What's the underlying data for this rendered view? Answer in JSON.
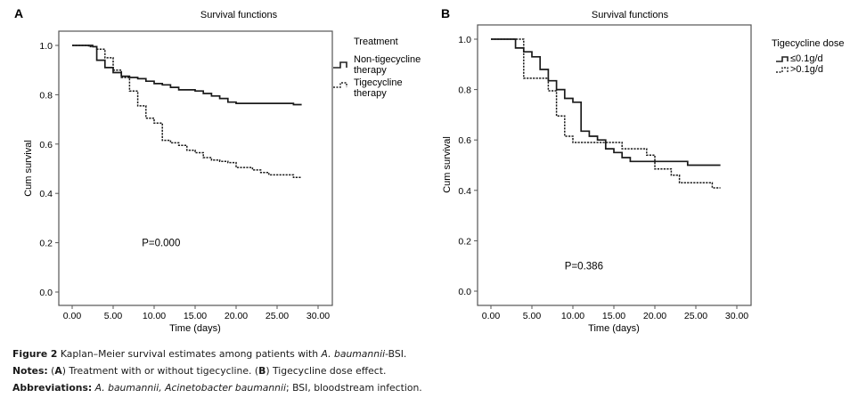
{
  "chart_data": [
    {
      "panel": "A",
      "type": "line",
      "subtype": "kaplan-meier-step",
      "title": "Survival functions",
      "xlabel": "Time (days)",
      "ylabel": "Cum survival",
      "xlim": [
        -1.5,
        31.5
      ],
      "ylim": [
        -0.05,
        1.05
      ],
      "xticks": [
        "0.00",
        "5.00",
        "10.00",
        "15.00",
        "20.00",
        "25.00",
        "30.00"
      ],
      "xtick_values": [
        0,
        5,
        10,
        15,
        20,
        25,
        30
      ],
      "yticks": [
        "0.0",
        "0.2",
        "0.4",
        "0.6",
        "0.8",
        "1.0"
      ],
      "ytick_values": [
        0,
        0.2,
        0.4,
        0.6,
        0.8,
        1.0
      ],
      "grid": false,
      "legend_title": "Treatment",
      "legend_placement": "right",
      "annotation": "P=0.000",
      "annotation_pos": [
        8.5,
        0.2
      ],
      "series": [
        {
          "name": "Non-tigecycline therapy",
          "style": "solid",
          "steps": [
            [
              0,
              1.0
            ],
            [
              2.5,
              0.995
            ],
            [
              3.0,
              0.94
            ],
            [
              4.0,
              0.91
            ],
            [
              5.0,
              0.89
            ],
            [
              6.0,
              0.875
            ],
            [
              7.0,
              0.87
            ],
            [
              8.0,
              0.865
            ],
            [
              9.0,
              0.855
            ],
            [
              10.0,
              0.845
            ],
            [
              11.0,
              0.84
            ],
            [
              12.0,
              0.83
            ],
            [
              13.0,
              0.82
            ],
            [
              15.0,
              0.815
            ],
            [
              16.0,
              0.805
            ],
            [
              17.0,
              0.795
            ],
            [
              18.0,
              0.785
            ],
            [
              19.0,
              0.77
            ],
            [
              20.0,
              0.765
            ],
            [
              27.0,
              0.76
            ]
          ],
          "end": 28
        },
        {
          "name": "Tigecycline therapy",
          "style": "dashed",
          "steps": [
            [
              0,
              1.0
            ],
            [
              2.0,
              0.995
            ],
            [
              3.0,
              0.985
            ],
            [
              4.0,
              0.95
            ],
            [
              5.0,
              0.9
            ],
            [
              6.0,
              0.87
            ],
            [
              7.0,
              0.815
            ],
            [
              8.0,
              0.755
            ],
            [
              9.0,
              0.705
            ],
            [
              10.0,
              0.685
            ],
            [
              11.0,
              0.615
            ],
            [
              12.0,
              0.605
            ],
            [
              13.0,
              0.595
            ],
            [
              14.0,
              0.575
            ],
            [
              15.0,
              0.565
            ],
            [
              16.0,
              0.545
            ],
            [
              17.0,
              0.535
            ],
            [
              18.0,
              0.53
            ],
            [
              19.0,
              0.525
            ],
            [
              20.0,
              0.505
            ],
            [
              22.0,
              0.495
            ],
            [
              23.0,
              0.485
            ],
            [
              24.0,
              0.475
            ],
            [
              27.0,
              0.465
            ]
          ],
          "end": 28
        }
      ]
    },
    {
      "panel": "B",
      "type": "line",
      "subtype": "kaplan-meier-step",
      "title": "Survival functions",
      "xlabel": "Time (days)",
      "ylabel": "Cum survival",
      "xlim": [
        -1.5,
        31.5
      ],
      "ylim": [
        -0.05,
        1.05
      ],
      "xticks": [
        "0.00",
        "5.00",
        "10.00",
        "15.00",
        "20.00",
        "25.00",
        "30.00"
      ],
      "xtick_values": [
        0,
        5,
        10,
        15,
        20,
        25,
        30
      ],
      "yticks": [
        "0.0",
        "0.2",
        "0.4",
        "0.6",
        "0.8",
        "1.0"
      ],
      "ytick_values": [
        0,
        0.2,
        0.4,
        0.6,
        0.8,
        1.0
      ],
      "grid": false,
      "legend_title": "Tigecycline dose",
      "legend_placement": "right",
      "annotation": "P=0.386",
      "annotation_pos": [
        9.0,
        0.1
      ],
      "series": [
        {
          "name": "≤0.1g/d",
          "style": "solid",
          "steps": [
            [
              0,
              1.0
            ],
            [
              3.0,
              0.965
            ],
            [
              4.0,
              0.95
            ],
            [
              5.0,
              0.93
            ],
            [
              6.0,
              0.88
            ],
            [
              7.0,
              0.835
            ],
            [
              8.0,
              0.8
            ],
            [
              9.0,
              0.765
            ],
            [
              10.0,
              0.75
            ],
            [
              11.0,
              0.635
            ],
            [
              12.0,
              0.615
            ],
            [
              13.0,
              0.6
            ],
            [
              14.0,
              0.565
            ],
            [
              15.0,
              0.55
            ],
            [
              16.0,
              0.53
            ],
            [
              17.0,
              0.515
            ],
            [
              24.0,
              0.5
            ]
          ],
          "end": 28
        },
        {
          "name": ">0.1g/d",
          "style": "dashed",
          "steps": [
            [
              0,
              1.0
            ],
            [
              4.0,
              0.845
            ],
            [
              7.0,
              0.795
            ],
            [
              8.0,
              0.695
            ],
            [
              9.0,
              0.615
            ],
            [
              10.0,
              0.59
            ],
            [
              16.0,
              0.565
            ],
            [
              19.0,
              0.54
            ],
            [
              20.0,
              0.485
            ],
            [
              22.0,
              0.46
            ],
            [
              23.0,
              0.43
            ],
            [
              27.0,
              0.41
            ]
          ],
          "end": 28,
          "initial_drop_at": 4.0,
          "pre_drop": [
            [
              3.0,
              1.0
            ]
          ]
        }
      ]
    }
  ],
  "caption": {
    "figure_label": "Figure 2",
    "figure_text": " Kaplan–Meier survival estimates among patients with ",
    "figure_italic": "A. baumannii",
    "figure_tail": "-BSI.",
    "notes_label": "Notes:",
    "notes_open_a": " (",
    "notes_a": "A",
    "notes_text_a": ") Treatment with or without tigecycline. (",
    "notes_b": "B",
    "notes_text_b": ") Tigecycline dose effect.",
    "abbr_label": "Abbreviations:",
    "abbr_italic_1": " A. baumannii, Acinetobacter baumannii",
    "abbr_text": "; BSI, bloodstream infection."
  }
}
